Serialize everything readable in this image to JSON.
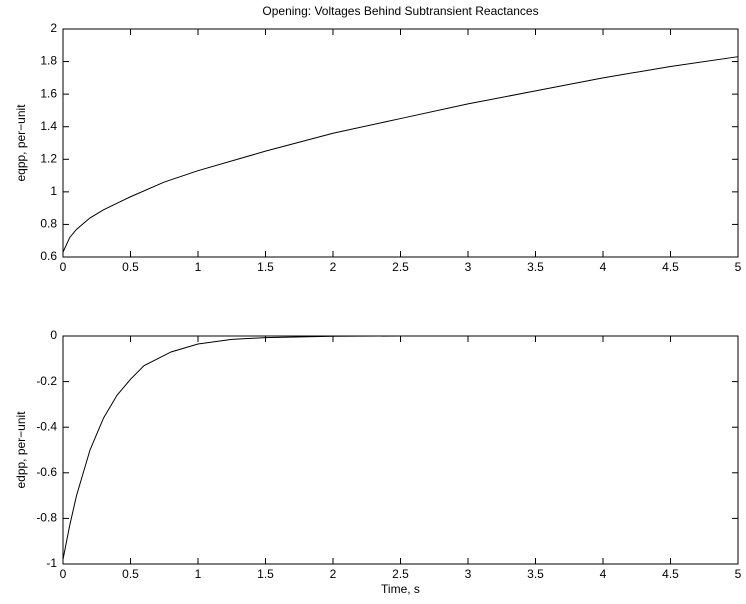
{
  "chart_data": [
    {
      "type": "line",
      "title": "Opening: Voltages Behind Subtransient Reactances",
      "ylabel": "eqpp, per−unit",
      "x": [
        0,
        0.05,
        0.1,
        0.2,
        0.3,
        0.5,
        0.75,
        1,
        1.5,
        2,
        2.5,
        3,
        3.5,
        4,
        4.5,
        5
      ],
      "series": [
        {
          "color": "#000000",
          "values": [
            0.63,
            0.72,
            0.77,
            0.84,
            0.89,
            0.97,
            1.06,
            1.13,
            1.25,
            1.36,
            1.45,
            1.54,
            1.62,
            1.7,
            1.77,
            1.83
          ]
        }
      ],
      "xlim": [
        0,
        5
      ],
      "xticks": [
        0,
        0.5,
        1,
        1.5,
        2,
        2.5,
        3,
        3.5,
        4,
        4.5,
        5
      ],
      "ylim": [
        0.6,
        2
      ],
      "yticks": [
        0.6,
        0.8,
        1,
        1.2,
        1.4,
        1.6,
        1.8,
        2
      ]
    },
    {
      "type": "line",
      "xlabel": "Time, s",
      "ylabel": "edpp, per−unit",
      "x": [
        0,
        0.05,
        0.1,
        0.2,
        0.3,
        0.4,
        0.5,
        0.6,
        0.8,
        1,
        1.25,
        1.5,
        2,
        2.5,
        3,
        4,
        5
      ],
      "series": [
        {
          "color": "#000000",
          "values": [
            -0.98,
            -0.83,
            -0.7,
            -0.5,
            -0.36,
            -0.26,
            -0.19,
            -0.13,
            -0.07,
            -0.035,
            -0.015,
            -0.007,
            -0.001,
            0,
            0,
            0,
            0
          ]
        }
      ],
      "xlim": [
        0,
        5
      ],
      "xticks": [
        0,
        0.5,
        1,
        1.5,
        2,
        2.5,
        3,
        3.5,
        4,
        4.5,
        5
      ],
      "ylim": [
        -1,
        0
      ],
      "yticks": [
        -1,
        -0.8,
        -0.6,
        -0.4,
        -0.2,
        0
      ]
    }
  ]
}
